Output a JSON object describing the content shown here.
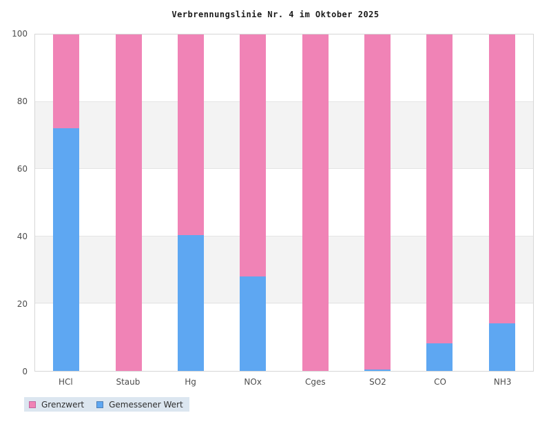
{
  "title": "Verbrennungslinie Nr. 4 im Oktober 2025",
  "chart_data": {
    "type": "bar",
    "stacked": true,
    "stack_total": 100,
    "title": "Verbrennungslinie Nr. 4 im Oktober 2025",
    "categories": [
      "HCl",
      "Staub",
      "Hg",
      "NOx",
      "Cges",
      "SO2",
      "CO",
      "NH3"
    ],
    "series": [
      {
        "name": "Gemessener Wert",
        "color": "#5ea7f2",
        "values": [
          72.2,
          0,
          40.4,
          28,
          0,
          0.4,
          8.2,
          14.1
        ]
      },
      {
        "name": "Grenzwert",
        "color": "#f083b6",
        "values": [
          27.8,
          100,
          59.6,
          72,
          100,
          99.6,
          91.8,
          85.9
        ]
      }
    ],
    "xlabel": "",
    "ylabel": "",
    "ylim": [
      0,
      100
    ],
    "yticks": [
      0,
      20,
      40,
      60,
      80,
      100
    ],
    "grid": "horizontal-bands-alternating",
    "band_colors": [
      "#ffffff",
      "#f3f3f3"
    ],
    "legend_position": "bottom-left"
  },
  "legend": {
    "background": "#dce6f0",
    "items": [
      {
        "label": "Grenzwert",
        "color": "#f083b6",
        "border": "#c2659e"
      },
      {
        "label": "Gemessener Wert",
        "color": "#5ea7f2",
        "border": "#4f7fb5"
      }
    ]
  },
  "colors": {
    "plot_border": "#d6d6d6",
    "gridline": "#e4e4e4",
    "axis_text": "#4c4c4c",
    "title_text": "#1a1a1a",
    "background": "#ffffff"
  }
}
